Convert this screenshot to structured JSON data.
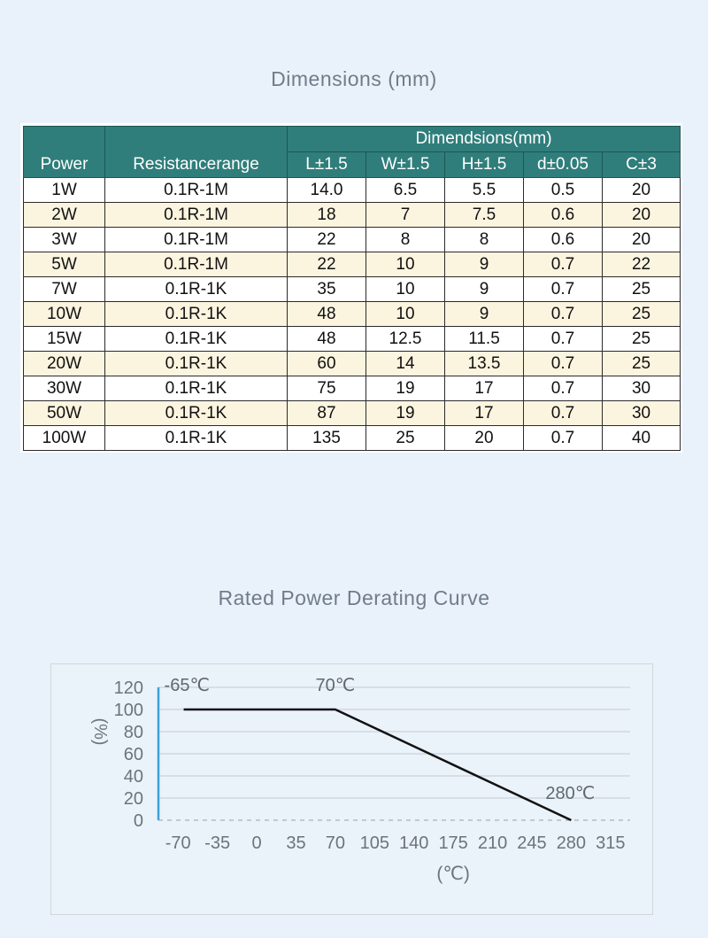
{
  "dimensions_title": "Dimensions (mm)",
  "table": {
    "header_power": "Power",
    "header_resistance": "Resistancerange",
    "header_group": "Dimendsions(mm)",
    "sub_headers": [
      "L±1.5",
      "W±1.5",
      "H±1.5",
      "d±0.05",
      "C±3"
    ],
    "rows": [
      [
        "1W",
        "0.1R-1M",
        "14.0",
        "6.5",
        "5.5",
        "0.5",
        "20"
      ],
      [
        "2W",
        "0.1R-1M",
        "18",
        "7",
        "7.5",
        "0.6",
        "20"
      ],
      [
        "3W",
        "0.1R-1M",
        "22",
        "8",
        "8",
        "0.6",
        "20"
      ],
      [
        "5W",
        "0.1R-1M",
        "22",
        "10",
        "9",
        "0.7",
        "22"
      ],
      [
        "7W",
        "0.1R-1K",
        "35",
        "10",
        "9",
        "0.7",
        "25"
      ],
      [
        "10W",
        "0.1R-1K",
        "48",
        "10",
        "9",
        "0.7",
        "25"
      ],
      [
        "15W",
        "0.1R-1K",
        "48",
        "12.5",
        "11.5",
        "0.7",
        "25"
      ],
      [
        "20W",
        "0.1R-1K",
        "60",
        "14",
        "13.5",
        "0.7",
        "25"
      ],
      [
        "30W",
        "0.1R-1K",
        "75",
        "19",
        "17",
        "0.7",
        "30"
      ],
      [
        "50W",
        "0.1R-1K",
        "87",
        "19",
        "17",
        "0.7",
        "30"
      ],
      [
        "100W",
        "0.1R-1K",
        "135",
        "25",
        "20",
        "0.7",
        "40"
      ]
    ]
  },
  "curve_title": "Rated Power Derating Curve",
  "chart_data": {
    "type": "line",
    "title": "Rated Power Derating Curve",
    "xlabel": "(℃)",
    "ylabel": "(%)",
    "xlim": [
      -87.5,
      332.5
    ],
    "ylim": [
      0,
      120
    ],
    "x_ticks": [
      -70,
      -35,
      0,
      35,
      70,
      105,
      140,
      175,
      210,
      245,
      280,
      315
    ],
    "y_ticks": [
      0,
      20,
      40,
      60,
      80,
      100,
      120
    ],
    "grid": true,
    "series": [
      {
        "x": [
          -65,
          70,
          280
        ],
        "y": [
          100,
          100,
          0
        ]
      }
    ],
    "annotations": [
      {
        "text": "-65℃",
        "x": -65,
        "y": 120
      },
      {
        "text": "70℃",
        "x": 70,
        "y": 120
      },
      {
        "text": "280℃",
        "x": 280,
        "y": 25
      }
    ],
    "colors": {
      "line": "#111111",
      "axis": "#3ea0d6",
      "grid": "#c7cbd0",
      "tick": "#6b737b"
    }
  }
}
